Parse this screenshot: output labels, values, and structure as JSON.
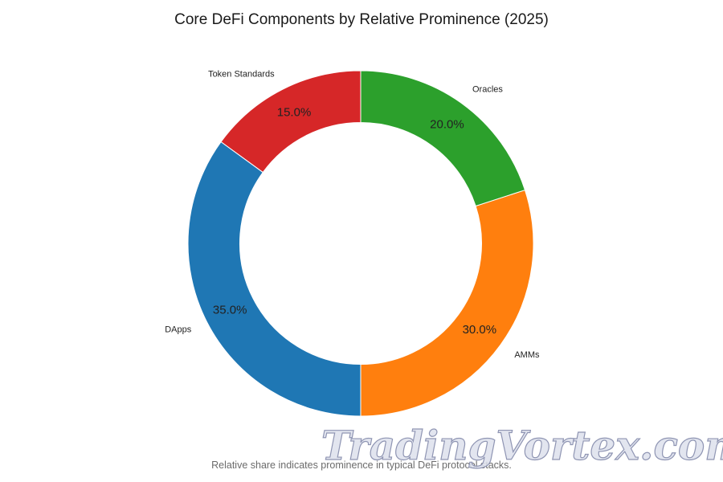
{
  "chart_data": {
    "type": "pie",
    "variant": "donut",
    "title": "Core DeFi Components by Relative Prominence (2025)",
    "footnote": "Relative share indicates prominence in typical DeFi protocol stacks.",
    "start_angle_deg": 90,
    "direction": "counterclockwise",
    "inner_radius_ratio": 0.7,
    "slices": [
      {
        "label": "Token Standards",
        "value": 15.0,
        "pct_label": "15.0%",
        "color": "#d62728"
      },
      {
        "label": "DApps",
        "value": 35.0,
        "pct_label": "35.0%",
        "color": "#1f77b4"
      },
      {
        "label": "AMMs",
        "value": 30.0,
        "pct_label": "30.0%",
        "color": "#ff7f0e"
      },
      {
        "label": "Oracles",
        "value": 20.0,
        "pct_label": "20.0%",
        "color": "#2ca02c"
      }
    ]
  },
  "watermark": {
    "text": "TradingVortex.com"
  }
}
